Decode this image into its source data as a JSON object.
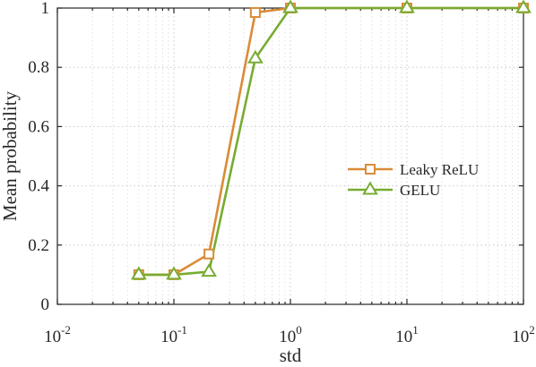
{
  "chart_data": {
    "type": "line",
    "xscale": "log",
    "xlabel": "std",
    "ylabel": "Mean probability",
    "xlim": [
      0.01,
      100
    ],
    "ylim": [
      0,
      1
    ],
    "grid": true,
    "legend_position": "center-right",
    "x_ticks": [
      {
        "base": "10",
        "exp": "-2"
      },
      {
        "base": "10",
        "exp": "-1"
      },
      {
        "base": "10",
        "exp": "0"
      },
      {
        "base": "10",
        "exp": "1"
      },
      {
        "base": "10",
        "exp": "2"
      }
    ],
    "y_ticks": [
      "0",
      "0.2",
      "0.4",
      "0.6",
      "0.8",
      "1"
    ],
    "series": [
      {
        "name": "Leaky ReLU",
        "color": "#d98c38",
        "marker": "square",
        "x": [
          0.05,
          0.1,
          0.2,
          0.5,
          1,
          10,
          100
        ],
        "y": [
          0.1,
          0.1,
          0.17,
          0.985,
          1.0,
          1.0,
          1.0
        ]
      },
      {
        "name": "GELU",
        "color": "#77ac30",
        "marker": "triangle",
        "x": [
          0.05,
          0.1,
          0.2,
          0.5,
          1,
          10,
          100
        ],
        "y": [
          0.1,
          0.1,
          0.11,
          0.83,
          1.0,
          1.0,
          1.0
        ]
      }
    ]
  }
}
